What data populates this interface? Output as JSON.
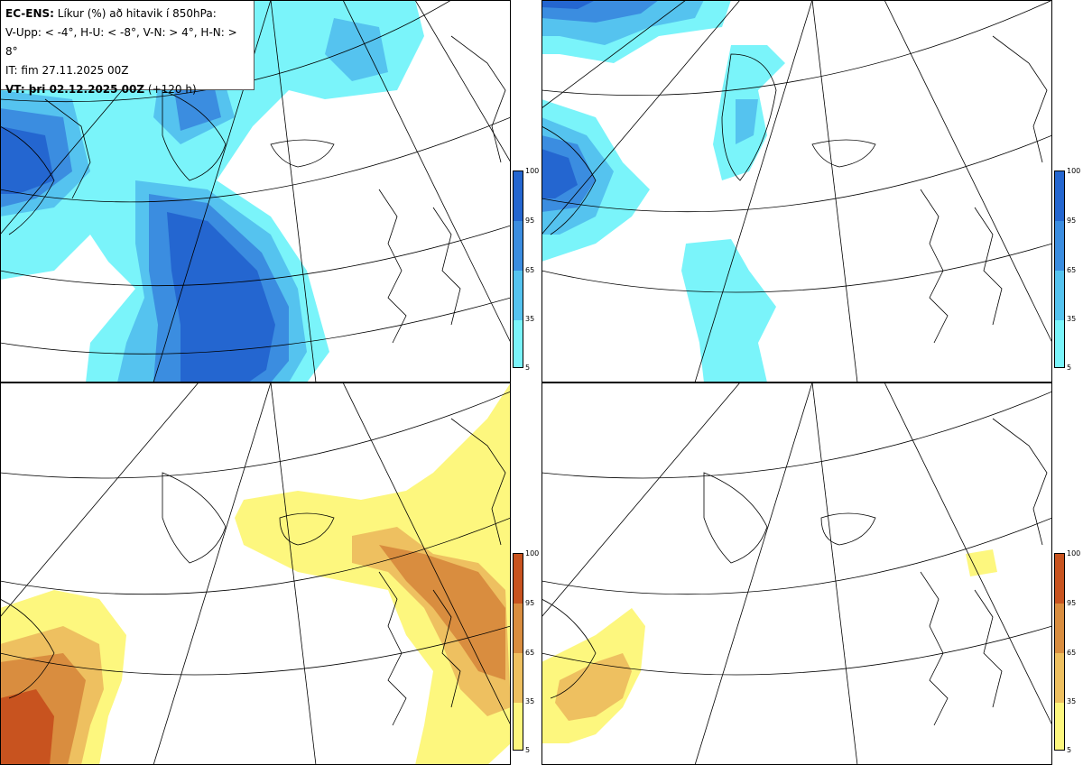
{
  "header": {
    "line1_bold": "EC-ENS:",
    "line1_rest": " Líkur (%) að hitavik í 850hPa:",
    "line2": "V-Upp: < -4°, H-U: < -8°, V-N: > 4°, H-N: > 8°",
    "line3": "IT: fim 27.11.2025 00Z",
    "line4_bold": "VT: þri 02.12.2025 00Z",
    "line4_rest": " (+120 h)"
  },
  "panels": [
    {
      "id": "V-Upp",
      "description_key": "top-left",
      "palette": "blue"
    },
    {
      "id": "H-U",
      "description_key": "top-right",
      "palette": "blue"
    },
    {
      "id": "V-N",
      "description_key": "bottom-left",
      "palette": "orange"
    },
    {
      "id": "H-N",
      "description_key": "bottom-right",
      "palette": "orange"
    }
  ],
  "colorbar": {
    "ticks": [
      "100",
      "95",
      "65",
      "35",
      "5"
    ],
    "blue_colors": [
      "#2466d0",
      "#3b8de0",
      "#55c3ef",
      "#7af4fa"
    ],
    "orange_colors": [
      "#c8531f",
      "#d98d3f",
      "#eec060",
      "#fdf77e"
    ]
  }
}
